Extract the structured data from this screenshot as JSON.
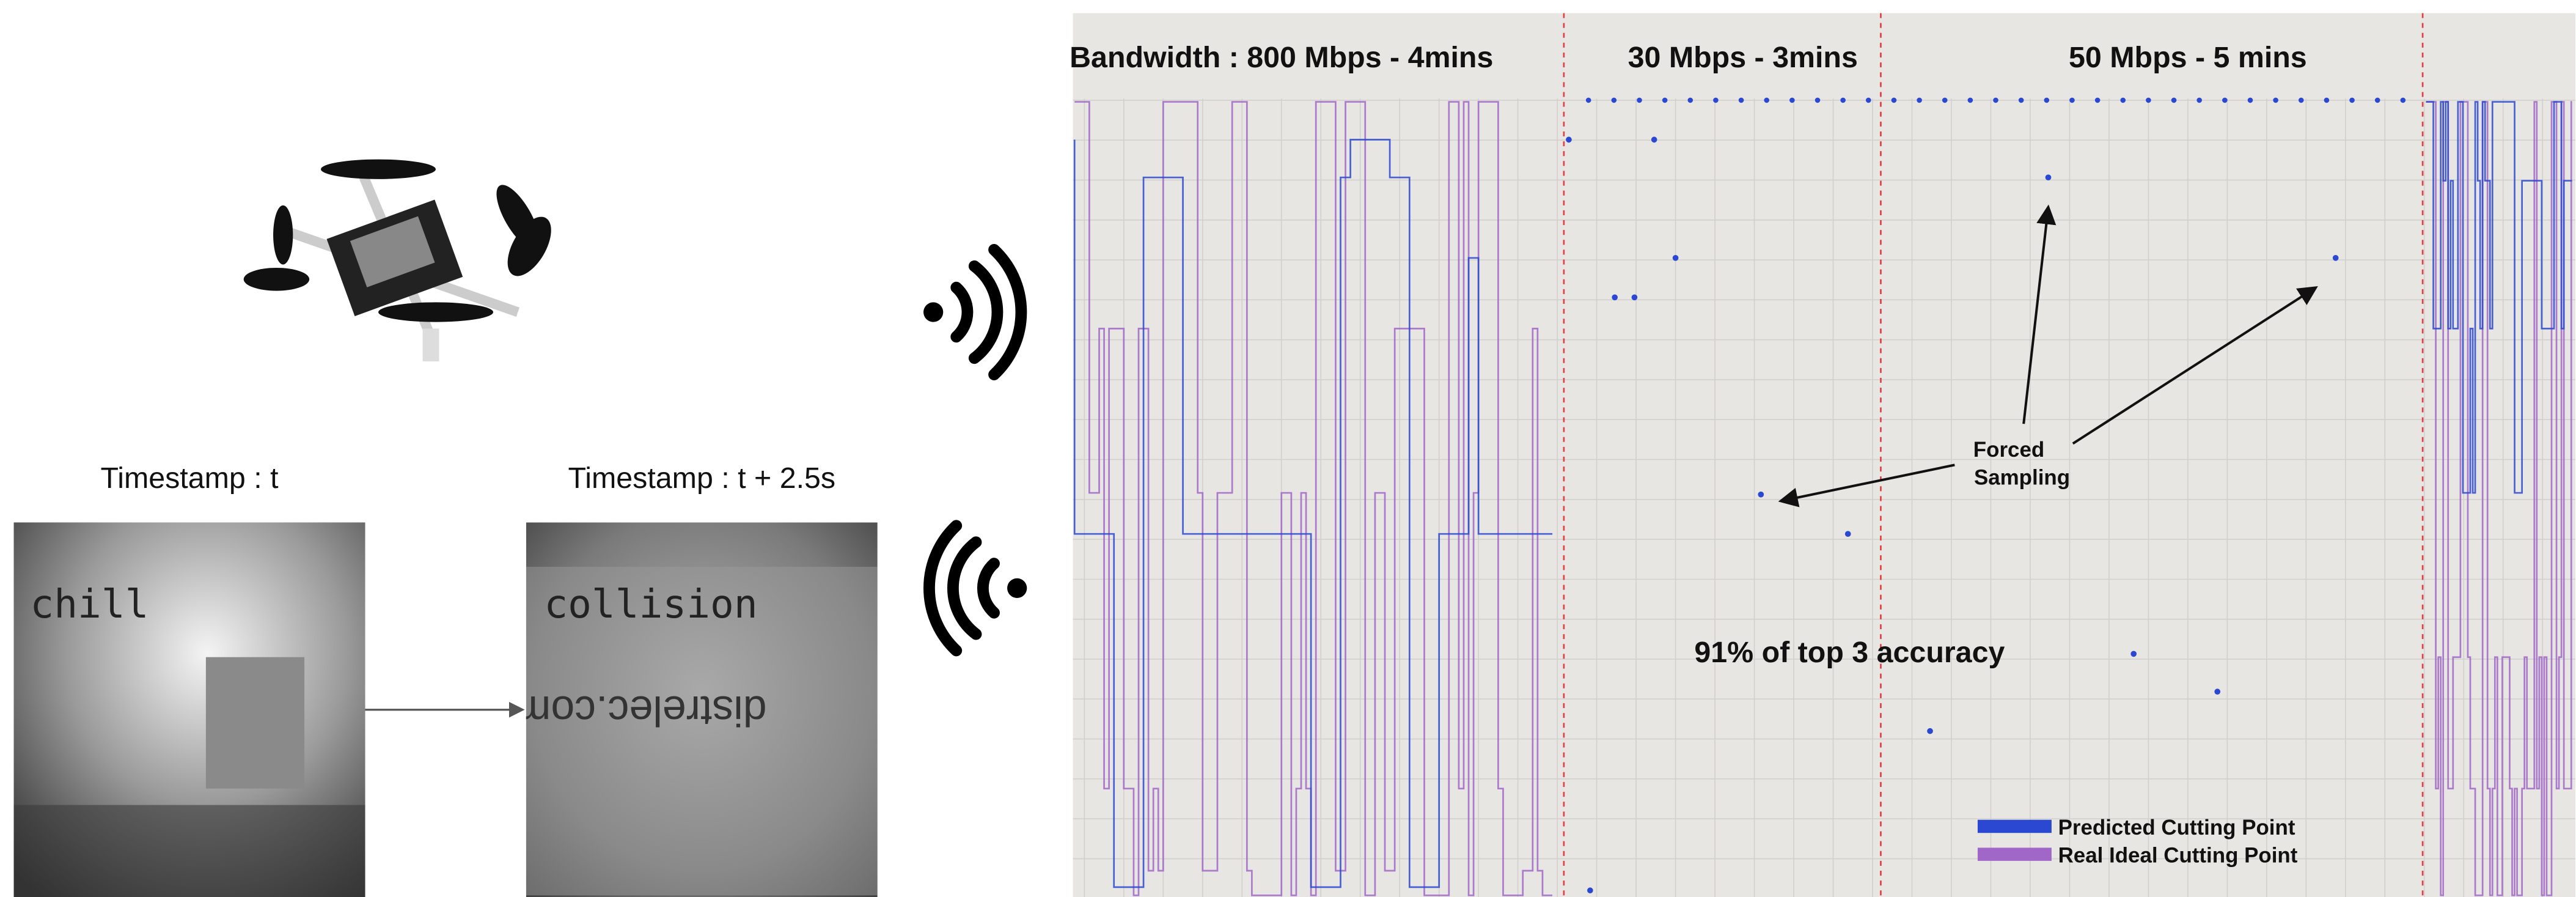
{
  "figure": {
    "frames": [
      {
        "label": "Timestamp : t",
        "overlay": "chill"
      },
      {
        "label": "Timestamp : t + 2.5s",
        "overlay": "collision",
        "box_text": "distrelec.com"
      }
    ],
    "plot": {
      "segments": [
        "Bandwidth : 800 Mbps - 4mins",
        "30 Mbps - 3mins",
        "50 Mbps - 5 mins"
      ],
      "annotation": [
        "Forced",
        "Sampling"
      ],
      "accuracy": "91% of top 3 accuracy",
      "legend": [
        {
          "name": "Predicted Cutting Point",
          "color": "#2a48d2"
        },
        {
          "name": "Real Ideal Cutting Point",
          "color": "#a066c8"
        }
      ]
    }
  }
}
